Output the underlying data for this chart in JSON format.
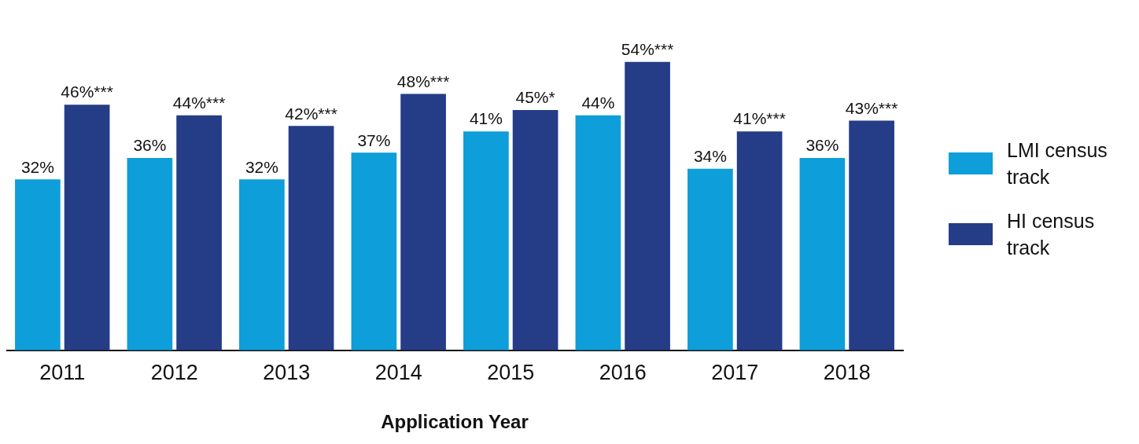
{
  "chart_data": {
    "type": "bar",
    "xlabel": "Application Year",
    "categories": [
      "2011",
      "2012",
      "2013",
      "2014",
      "2015",
      "2016",
      "2017",
      "2018"
    ],
    "series": [
      {
        "name": "LMI census track",
        "color": "#0e9ed9",
        "values": [
          32,
          36,
          32,
          37,
          41,
          44,
          34,
          36
        ],
        "value_labels": [
          "32%",
          "36%",
          "32%",
          "37%",
          "41%",
          "44%",
          "34%",
          "36%"
        ]
      },
      {
        "name": "HI census track",
        "color": "#253c87",
        "values": [
          46,
          44,
          42,
          48,
          45,
          54,
          41,
          43
        ],
        "value_labels": [
          "46%***",
          "44%***",
          "42%***",
          "48%***",
          "45%*",
          "54%***",
          "41%***",
          "43%***"
        ]
      }
    ],
    "legend": "right",
    "grid": false
  }
}
